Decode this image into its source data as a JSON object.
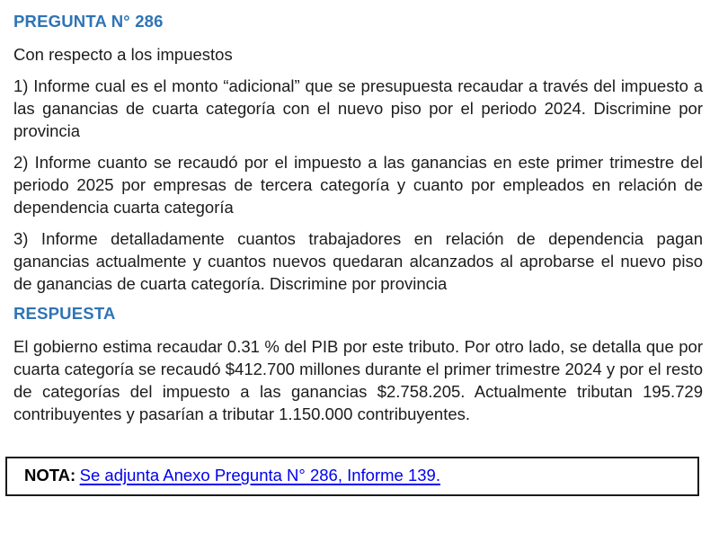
{
  "colors": {
    "heading_blue": "#2E74B5",
    "link_blue": "#0000EE",
    "body_text": "#1c1c1c",
    "note_border": "#1b1b1b"
  },
  "question": {
    "title": "PREGUNTA N° 286",
    "intro": "Con respecto a los impuestos",
    "items": [
      "1) Informe cual es el monto “adicional” que se presupuesta recaudar a través del impuesto a las ganancias de cuarta categoría con el nuevo piso por el periodo 2024. Discrimine por provincia",
      "2) Informe cuanto se recaudó por el impuesto a las ganancias en este primer trimestre del periodo 2025 por empresas de tercera categoría y cuanto por empleados en relación de dependencia cuarta categoría",
      "3) Informe detalladamente cuantos trabajadores en relación de dependencia pagan ganancias actualmente y cuantos nuevos quedaran alcanzados al aprobarse el nuevo piso de ganancias de cuarta categoría. Discrimine por provincia"
    ]
  },
  "answer": {
    "title": "RESPUESTA",
    "body": "El gobierno estima recaudar 0.31 % del PIB por este tributo. Por otro lado, se detalla que por cuarta categoría se recaudó $412.700 millones durante el primer trimestre 2024 y por el resto de categorías del impuesto a las ganancias $2.758.205. Actualmente tributan 195.729 contribuyentes y pasarían a tributar 1.150.000 contribuyentes."
  },
  "note": {
    "label": "NOTA:",
    "link_text": "Se adjunta Anexo Pregunta N° 286, Informe 139."
  }
}
